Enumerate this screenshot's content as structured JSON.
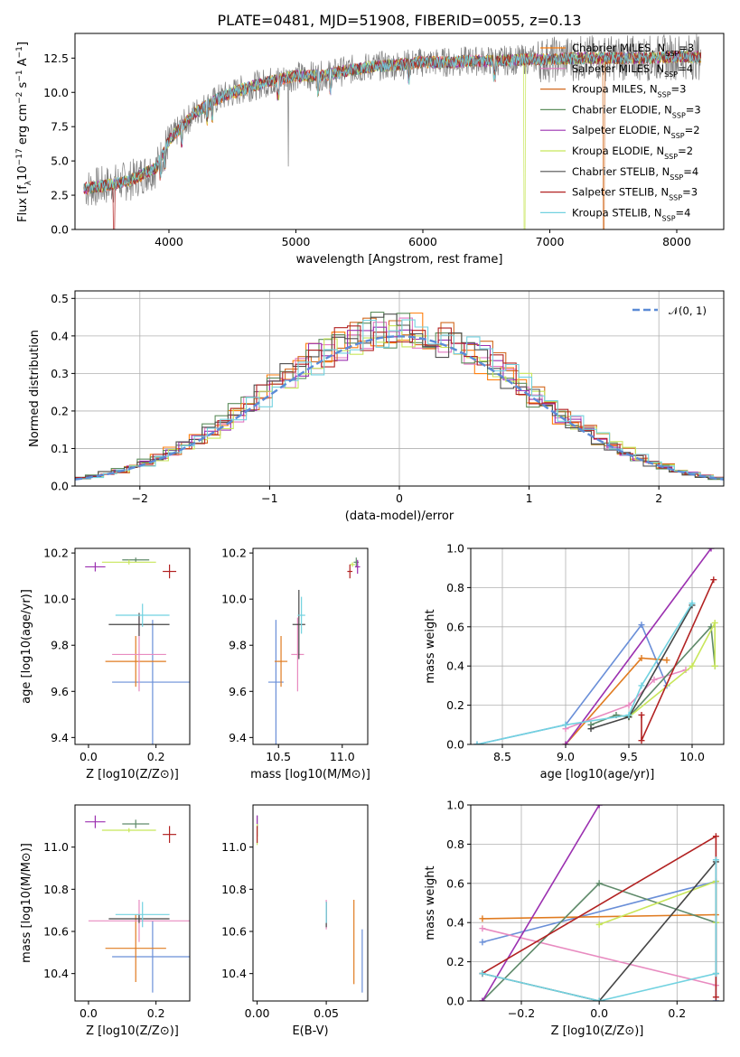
{
  "title": "PLATE=0481, MJD=51908, FIBERID=0055, z=0.13",
  "colors": {
    "models": [
      "#ff7f0e",
      "#e377c2",
      "#d2691e",
      "#5f8f5f",
      "#9b30b0",
      "#c8e65a",
      "#505050",
      "#b22222",
      "#72d2e0"
    ],
    "fits": [
      "#6a8fd8",
      "#e07b20",
      "#e88bc0",
      "#5f8a6a",
      "#9b30b0",
      "#c8e65a",
      "#454545",
      "#b22222",
      "#72d2e0"
    ],
    "normal": "#5b8bd6"
  },
  "chart_data": [
    {
      "id": "spectrum",
      "type": "line",
      "xlabel": "wavelength [Angstrom, rest frame]",
      "ylabel": "Flux [f_λ10^-17 erg cm^-2 s^-1 A^-1]",
      "xlim": [
        3260,
        8370
      ],
      "ylim": [
        0,
        14.3
      ],
      "xticks": [
        4000,
        5000,
        6000,
        7000,
        8000
      ],
      "xticklabels": [
        "4000",
        "5000",
        "6000",
        "7000",
        "8000"
      ],
      "yticks": [
        0,
        2.5,
        5,
        7.5,
        10,
        12.5
      ],
      "yticklabels": [
        "0.0",
        "2.5",
        "5.0",
        "7.5",
        "10.0",
        "12.5"
      ],
      "grid": false,
      "legend_position": "upper-right",
      "continuum": {
        "x": [
          3350,
          3500,
          3700,
          3900,
          4000,
          4200,
          4400,
          4600,
          4800,
          5000,
          5200,
          5400,
          5600,
          5800,
          6000,
          6200,
          6400,
          6600,
          6800,
          7000,
          7200,
          7400,
          7600,
          7800,
          8000,
          8200
        ],
        "y": [
          3.0,
          3.2,
          3.6,
          4.5,
          6.5,
          8.5,
          9.6,
          10.3,
          10.8,
          11.2,
          11.2,
          11.6,
          11.9,
          12.0,
          12.2,
          12.2,
          12.3,
          12.3,
          12.4,
          12.4,
          12.5,
          12.5,
          12.5,
          12.5,
          12.6,
          12.6
        ]
      },
      "series": [
        {
          "name": "Chabrier MILES, N_SSP=3"
        },
        {
          "name": "Salpeter MILES, N_SSP=4"
        },
        {
          "name": "Kroupa MILES, N_SSP=3"
        },
        {
          "name": "Chabrier ELODIE, N_SSP=3"
        },
        {
          "name": "Salpeter ELODIE, N_SSP=2"
        },
        {
          "name": "Kroupa ELODIE, N_SSP=2"
        },
        {
          "name": "Chabrier STELIB, N_SSP=4"
        },
        {
          "name": "Salpeter STELIB, N_SSP=3"
        },
        {
          "name": "Kroupa STELIB, N_SSP=4"
        }
      ]
    },
    {
      "id": "residuals",
      "type": "bar",
      "xlabel": "(data-model)/error",
      "ylabel": "Normed distribution",
      "xlim": [
        -2.5,
        2.5
      ],
      "ylim": [
        0,
        0.52
      ],
      "xticks": [
        -2,
        -1,
        0,
        1,
        2
      ],
      "xticklabels": [
        "−2",
        "−1",
        "0",
        "1",
        "2"
      ],
      "yticks": [
        0,
        0.1,
        0.2,
        0.3,
        0.4,
        0.5
      ],
      "yticklabels": [
        "0.0",
        "0.1",
        "0.2",
        "0.3",
        "0.4",
        "0.5"
      ],
      "grid": true,
      "bin_width": 0.1,
      "legend": "𝒩(0, 1)",
      "legend_position": "upper-right"
    },
    {
      "id": "age-vs-Z",
      "type": "scatter",
      "xlabel": "Z [log10(Z/Z⊙)]",
      "ylabel": "age  [log10(age/yr)]",
      "xlim": [
        -0.04,
        0.3
      ],
      "ylim": [
        9.37,
        10.22
      ],
      "xticks": [
        0.0,
        0.2
      ],
      "xticklabels": [
        "0.0",
        "0.2"
      ],
      "yticks": [
        9.4,
        9.6,
        9.8,
        10.0,
        10.2
      ],
      "yticklabels": [
        "9.4",
        "9.6",
        "9.8",
        "10.0",
        "10.2"
      ],
      "points": [
        {
          "x": 0.19,
          "y": 9.64,
          "xerr": 0.12,
          "yerr": 0.27
        },
        {
          "x": 0.14,
          "y": 9.73,
          "xerr": 0.09,
          "yerr": 0.11
        },
        {
          "x": 0.15,
          "y": 9.76,
          "xerr": 0.08,
          "yerr": 0.16
        },
        {
          "x": 0.14,
          "y": 10.17,
          "xerr": 0.04,
          "yerr": 0.01
        },
        {
          "x": 0.02,
          "y": 10.14,
          "xerr": 0.03,
          "yerr": 0.02
        },
        {
          "x": 0.12,
          "y": 10.16,
          "xerr": 0.08,
          "yerr": 0.01
        },
        {
          "x": 0.15,
          "y": 9.89,
          "xerr": 0.09,
          "yerr": 0.05
        },
        {
          "x": 0.24,
          "y": 10.12,
          "xerr": 0.02,
          "yerr": 0.03
        },
        {
          "x": 0.16,
          "y": 9.93,
          "xerr": 0.08,
          "yerr": 0.05
        }
      ]
    },
    {
      "id": "age-vs-mass",
      "type": "scatter",
      "xlabel": "mass [log10(M/M⊙)]",
      "ylabel": "",
      "xlim": [
        10.3,
        11.2
      ],
      "ylim": [
        9.37,
        10.22
      ],
      "xticks": [
        10.5,
        11.0
      ],
      "xticklabels": [
        "10.5",
        "11.0"
      ],
      "yticks": [
        9.4,
        9.6,
        9.8,
        10.0,
        10.2
      ],
      "yticklabels": [
        "9.4",
        "9.6",
        "9.8",
        "10.0",
        "10.2"
      ],
      "points": [
        {
          "x": 10.48,
          "y": 9.64,
          "xerr": 0.06,
          "yerr": 0.27
        },
        {
          "x": 10.52,
          "y": 9.73,
          "xerr": 0.05,
          "yerr": 0.11
        },
        {
          "x": 10.65,
          "y": 9.76,
          "xerr": 0.05,
          "yerr": 0.16
        },
        {
          "x": 11.11,
          "y": 10.16,
          "xerr": 0.02,
          "yerr": 0.02
        },
        {
          "x": 11.12,
          "y": 10.14,
          "xerr": 0.02,
          "yerr": 0.03
        },
        {
          "x": 11.08,
          "y": 10.15,
          "xerr": 0.02,
          "yerr": 0.01
        },
        {
          "x": 10.66,
          "y": 9.89,
          "xerr": 0.05,
          "yerr": 0.15
        },
        {
          "x": 11.06,
          "y": 10.12,
          "xerr": 0.02,
          "yerr": 0.03
        },
        {
          "x": 10.68,
          "y": 9.93,
          "xerr": 0.03,
          "yerr": 0.08
        }
      ]
    },
    {
      "id": "mass-weight-vs-age",
      "type": "line",
      "xlabel": "age  [log10(age/yr)]",
      "ylabel": "mass weight",
      "xlim": [
        8.25,
        10.25
      ],
      "ylim": [
        0,
        1.0
      ],
      "xticks": [
        8.5,
        9.0,
        9.5,
        10.0
      ],
      "xticklabels": [
        "8.5",
        "9.0",
        "9.5",
        "10.0"
      ],
      "yticks": [
        0,
        0.2,
        0.4,
        0.6,
        0.8,
        1.0
      ],
      "yticklabels": [
        "0.0",
        "0.2",
        "0.4",
        "0.6",
        "0.8",
        "1.0"
      ],
      "grid": true,
      "series": [
        {
          "x": [
            8.3,
            9.0,
            9.6,
            9.8
          ],
          "y": [
            0.0,
            0.1,
            0.61,
            0.3
          ]
        },
        {
          "x": [
            9.0,
            9.6,
            9.8
          ],
          "y": [
            0.0,
            0.44,
            0.43
          ]
        },
        {
          "x": [
            9.0,
            9.5,
            9.7,
            9.95
          ],
          "y": [
            0.08,
            0.2,
            0.33,
            0.38
          ]
        },
        {
          "x": [
            9.2,
            9.4,
            9.5,
            10.15,
            10.18
          ],
          "y": [
            0.1,
            0.15,
            0.14,
            0.6,
            0.4
          ]
        },
        {
          "x": [
            9.0,
            10.15
          ],
          "y": [
            0.0,
            1.0
          ]
        },
        {
          "x": [
            9.5,
            10.0,
            10.18,
            10.18
          ],
          "y": [
            0.14,
            0.4,
            0.62,
            0.4
          ]
        },
        {
          "x": [
            9.2,
            9.5,
            10.0
          ],
          "y": [
            0.08,
            0.14,
            0.71
          ]
        },
        {
          "x": [
            9.6,
            9.6,
            10.17
          ],
          "y": [
            0.15,
            0.02,
            0.84
          ]
        },
        {
          "x": [
            8.3,
            9.0,
            9.5,
            9.6,
            10.0
          ],
          "y": [
            0.0,
            0.1,
            0.15,
            0.3,
            0.72
          ]
        }
      ]
    },
    {
      "id": "mass-vs-Z",
      "type": "scatter",
      "xlabel": "Z [log10(Z/Z⊙)]",
      "ylabel": "mass [log10(M/M⊙)]",
      "xlim": [
        -0.04,
        0.3
      ],
      "ylim": [
        10.27,
        11.2
      ],
      "xticks": [
        0.0,
        0.2
      ],
      "xticklabels": [
        "0.0",
        "0.2"
      ],
      "yticks": [
        10.4,
        10.6,
        10.8,
        11.0
      ],
      "yticklabels": [
        "10.4",
        "10.6",
        "10.8",
        "11.0"
      ],
      "points": [
        {
          "x": 0.19,
          "y": 10.48,
          "xerr": 0.12,
          "yerr": 0.17
        },
        {
          "x": 0.14,
          "y": 10.52,
          "xerr": 0.09,
          "yerr": 0.16
        },
        {
          "x": 0.15,
          "y": 10.65,
          "xerr": 0.15,
          "yerr": 0.1
        },
        {
          "x": 0.14,
          "y": 11.11,
          "xerr": 0.04,
          "yerr": 0.02
        },
        {
          "x": 0.02,
          "y": 11.12,
          "xerr": 0.03,
          "yerr": 0.03
        },
        {
          "x": 0.12,
          "y": 11.08,
          "xerr": 0.08,
          "yerr": 0.01
        },
        {
          "x": 0.15,
          "y": 10.66,
          "xerr": 0.09,
          "yerr": 0.02
        },
        {
          "x": 0.24,
          "y": 11.06,
          "xerr": 0.02,
          "yerr": 0.04
        },
        {
          "x": 0.16,
          "y": 10.68,
          "xerr": 0.08,
          "yerr": 0.06
        }
      ]
    },
    {
      "id": "mass-vs-ebv",
      "type": "scatter",
      "xlabel": "E(B-V)",
      "ylabel": "",
      "xlim": [
        -0.003,
        0.08
      ],
      "ylim": [
        10.27,
        11.2
      ],
      "xticks": [
        0.0,
        0.05
      ],
      "xticklabels": [
        "0.00",
        "0.05"
      ],
      "yticks": [
        10.4,
        10.6,
        10.8,
        11.0
      ],
      "yticklabels": [
        "10.4",
        "10.6",
        "10.8",
        "11.0"
      ],
      "points": [
        {
          "x": 0.076,
          "y": 10.46,
          "yerr": 0.15
        },
        {
          "x": 0.07,
          "y": 10.55,
          "yerr": 0.2
        },
        {
          "x": 0.05,
          "y": 10.68,
          "yerr": 0.07
        },
        {
          "x": 0.0,
          "y": 11.1,
          "yerr": 0.05
        },
        {
          "x": 0.0,
          "y": 11.12,
          "yerr": 0.03
        },
        {
          "x": 0.0,
          "y": 11.06,
          "yerr": 0.05
        },
        {
          "x": 0.05,
          "y": 10.68,
          "yerr": 0.06
        },
        {
          "x": 0.0,
          "y": 11.06,
          "yerr": 0.04
        },
        {
          "x": 0.05,
          "y": 10.69,
          "yerr": 0.05
        }
      ]
    },
    {
      "id": "mass-weight-vs-Z",
      "type": "line",
      "xlabel": "Z [log10(Z/Z⊙)]",
      "ylabel": "mass weight",
      "xlim": [
        -0.33,
        0.32
      ],
      "ylim": [
        0,
        1.0
      ],
      "xticks": [
        -0.2,
        0.0,
        0.2
      ],
      "xticklabels": [
        "−0.2",
        "0.0",
        "0.2"
      ],
      "yticks": [
        0,
        0.2,
        0.4,
        0.6,
        0.8,
        1.0
      ],
      "yticklabels": [
        "0.0",
        "0.2",
        "0.4",
        "0.6",
        "0.8",
        "1.0"
      ],
      "grid": true,
      "series": [
        {
          "x": [
            -0.3,
            0.3,
            0.3
          ],
          "y": [
            0.3,
            0.61,
            0.0
          ]
        },
        {
          "x": [
            -0.3,
            0.3
          ],
          "y": [
            0.42,
            0.44
          ]
        },
        {
          "x": [
            -0.3,
            0.3
          ],
          "y": [
            0.37,
            0.08
          ]
        },
        {
          "x": [
            -0.3,
            0.0,
            0.3,
            0.3
          ],
          "y": [
            0.0,
            0.6,
            0.4,
            0.14
          ]
        },
        {
          "x": [
            -0.3,
            0.0
          ],
          "y": [
            0.0,
            1.0
          ]
        },
        {
          "x": [
            0.0,
            0.3,
            0.3
          ],
          "y": [
            0.39,
            0.61,
            0.4
          ]
        },
        {
          "x": [
            -0.3,
            0.0,
            0.3
          ],
          "y": [
            0.14,
            0.0,
            0.71
          ]
        },
        {
          "x": [
            -0.3,
            0.3,
            0.3
          ],
          "y": [
            0.14,
            0.84,
            0.02
          ]
        },
        {
          "x": [
            -0.3,
            0.0,
            0.3,
            0.3
          ],
          "y": [
            0.14,
            0.0,
            0.14,
            0.72
          ]
        }
      ]
    }
  ]
}
